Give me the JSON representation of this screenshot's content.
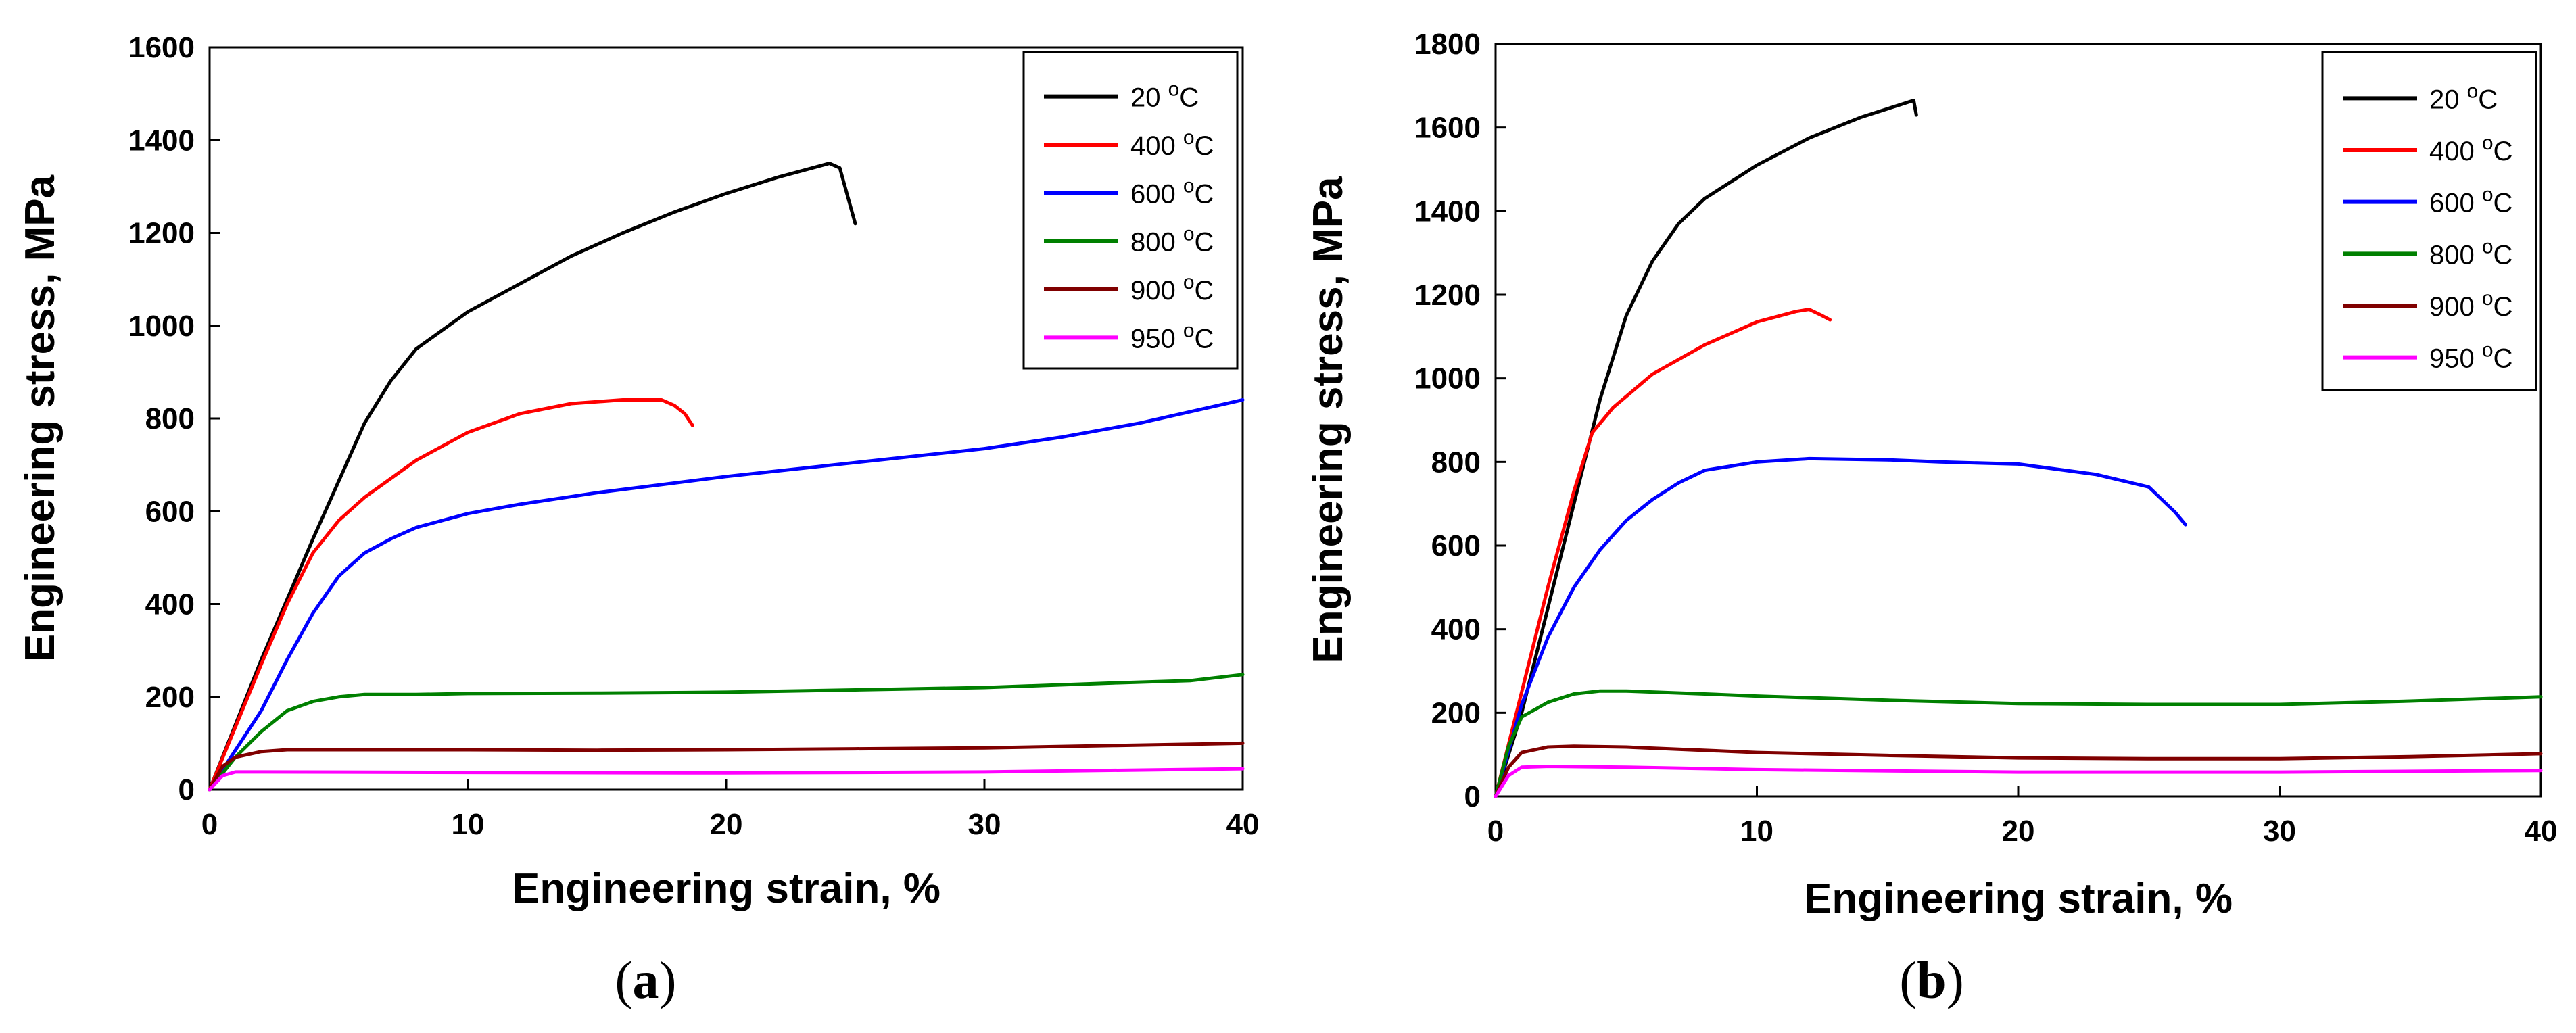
{
  "figure": {
    "panel_a_label": "a",
    "panel_b_label": "b"
  },
  "legend_entries": [
    "20 °C",
    "400 °C",
    "600 °C",
    "800 °C",
    "900 °C",
    "950 °C"
  ],
  "chart_data": [
    {
      "type": "line",
      "panel": "a",
      "title": "",
      "xlabel": "Engineering strain, %",
      "ylabel": "Engineering stress, MPa",
      "xlim": [
        0,
        40
      ],
      "ylim": [
        0,
        1600
      ],
      "xticks": [
        0,
        10,
        20,
        30,
        40
      ],
      "yticks": [
        0,
        200,
        400,
        600,
        800,
        1000,
        1200,
        1400,
        1600
      ],
      "grid": false,
      "legend_position": "top-right",
      "series": [
        {
          "name": "20 °C",
          "color": "#000000",
          "points": [
            [
              0,
              0
            ],
            [
              2,
              280
            ],
            [
              4,
              540
            ],
            [
              6,
              790
            ],
            [
              7,
              880
            ],
            [
              8,
              950
            ],
            [
              10,
              1030
            ],
            [
              12,
              1090
            ],
            [
              14,
              1150
            ],
            [
              16,
              1200
            ],
            [
              18,
              1245
            ],
            [
              20,
              1285
            ],
            [
              22,
              1320
            ],
            [
              23,
              1335
            ],
            [
              24,
              1350
            ],
            [
              24.4,
              1340
            ],
            [
              24.7,
              1280
            ],
            [
              25,
              1220
            ]
          ]
        },
        {
          "name": "400 °C",
          "color": "#ff0000",
          "points": [
            [
              0,
              0
            ],
            [
              2,
              270
            ],
            [
              3,
              400
            ],
            [
              4,
              510
            ],
            [
              5,
              580
            ],
            [
              6,
              630
            ],
            [
              8,
              710
            ],
            [
              10,
              770
            ],
            [
              12,
              810
            ],
            [
              14,
              832
            ],
            [
              16,
              840
            ],
            [
              17.5,
              840
            ],
            [
              18,
              828
            ],
            [
              18.4,
              810
            ],
            [
              18.7,
              785
            ]
          ]
        },
        {
          "name": "600 °C",
          "color": "#0000ff",
          "points": [
            [
              0,
              0
            ],
            [
              2,
              170
            ],
            [
              3,
              280
            ],
            [
              4,
              380
            ],
            [
              5,
              460
            ],
            [
              6,
              510
            ],
            [
              7,
              540
            ],
            [
              8,
              565
            ],
            [
              10,
              595
            ],
            [
              12,
              615
            ],
            [
              15,
              640
            ],
            [
              20,
              675
            ],
            [
              25,
              705
            ],
            [
              30,
              735
            ],
            [
              33,
              760
            ],
            [
              36,
              790
            ],
            [
              40,
              840
            ]
          ]
        },
        {
          "name": "800 °C",
          "color": "#008000",
          "points": [
            [
              0,
              0
            ],
            [
              1,
              70
            ],
            [
              2,
              125
            ],
            [
              3,
              170
            ],
            [
              4,
              190
            ],
            [
              5,
              200
            ],
            [
              6,
              205
            ],
            [
              8,
              205
            ],
            [
              10,
              207
            ],
            [
              15,
              208
            ],
            [
              20,
              210
            ],
            [
              25,
              215
            ],
            [
              30,
              220
            ],
            [
              35,
              230
            ],
            [
              38,
              235
            ],
            [
              40,
              248
            ]
          ]
        },
        {
          "name": "900 °C",
          "color": "#800000",
          "points": [
            [
              0,
              0
            ],
            [
              0.5,
              50
            ],
            [
              1,
              70
            ],
            [
              2,
              82
            ],
            [
              3,
              86
            ],
            [
              5,
              86
            ],
            [
              10,
              86
            ],
            [
              15,
              85
            ],
            [
              20,
              86
            ],
            [
              25,
              88
            ],
            [
              30,
              90
            ],
            [
              35,
              95
            ],
            [
              40,
              100
            ]
          ]
        },
        {
          "name": "950 °C",
          "color": "#ff00ff",
          "points": [
            [
              0,
              0
            ],
            [
              0.5,
              30
            ],
            [
              1,
              38
            ],
            [
              2,
              38
            ],
            [
              10,
              37
            ],
            [
              20,
              36
            ],
            [
              30,
              38
            ],
            [
              40,
              45
            ]
          ]
        }
      ]
    },
    {
      "type": "line",
      "panel": "b",
      "title": "",
      "xlabel": "Engineering strain, %",
      "ylabel": "Engineering stress, MPa",
      "xlim": [
        0,
        40
      ],
      "ylim": [
        0,
        1800
      ],
      "xticks": [
        0,
        10,
        20,
        30,
        40
      ],
      "yticks": [
        0,
        200,
        400,
        600,
        800,
        1000,
        1200,
        1400,
        1600,
        1800
      ],
      "grid": false,
      "legend_position": "top-right",
      "series": [
        {
          "name": "20 °C",
          "color": "#000000",
          "points": [
            [
              0,
              0
            ],
            [
              1,
              200
            ],
            [
              2,
              450
            ],
            [
              3,
              700
            ],
            [
              4,
              950
            ],
            [
              5,
              1150
            ],
            [
              6,
              1280
            ],
            [
              7,
              1370
            ],
            [
              8,
              1430
            ],
            [
              10,
              1510
            ],
            [
              12,
              1575
            ],
            [
              14,
              1625
            ],
            [
              15.5,
              1655
            ],
            [
              16,
              1665
            ],
            [
              16.1,
              1630
            ]
          ]
        },
        {
          "name": "400 °C",
          "color": "#ff0000",
          "points": [
            [
              0,
              0
            ],
            [
              1,
              250
            ],
            [
              2,
              500
            ],
            [
              3,
              730
            ],
            [
              3.7,
              870
            ],
            [
              4.5,
              930
            ],
            [
              6,
              1010
            ],
            [
              8,
              1080
            ],
            [
              10,
              1135
            ],
            [
              11.5,
              1160
            ],
            [
              12,
              1165
            ],
            [
              12.5,
              1150
            ],
            [
              12.8,
              1140
            ]
          ]
        },
        {
          "name": "600 °C",
          "color": "#0000ff",
          "points": [
            [
              0,
              0
            ],
            [
              1,
              220
            ],
            [
              2,
              380
            ],
            [
              3,
              500
            ],
            [
              4,
              590
            ],
            [
              5,
              660
            ],
            [
              6,
              710
            ],
            [
              7,
              750
            ],
            [
              8,
              780
            ],
            [
              10,
              800
            ],
            [
              12,
              808
            ],
            [
              15,
              805
            ],
            [
              17,
              800
            ],
            [
              20,
              795
            ],
            [
              23,
              770
            ],
            [
              25,
              740
            ],
            [
              25.5,
              710
            ],
            [
              26,
              680
            ],
            [
              26.4,
              650
            ]
          ]
        },
        {
          "name": "800 °C",
          "color": "#008000",
          "points": [
            [
              0,
              0
            ],
            [
              0.5,
              120
            ],
            [
              1,
              190
            ],
            [
              2,
              225
            ],
            [
              3,
              245
            ],
            [
              4,
              252
            ],
            [
              5,
              252
            ],
            [
              8,
              245
            ],
            [
              10,
              240
            ],
            [
              15,
              230
            ],
            [
              20,
              222
            ],
            [
              25,
              220
            ],
            [
              30,
              220
            ],
            [
              35,
              228
            ],
            [
              40,
              238
            ]
          ]
        },
        {
          "name": "900 °C",
          "color": "#800000",
          "points": [
            [
              0,
              0
            ],
            [
              0.5,
              70
            ],
            [
              1,
              105
            ],
            [
              2,
              118
            ],
            [
              3,
              120
            ],
            [
              5,
              118
            ],
            [
              10,
              105
            ],
            [
              15,
              98
            ],
            [
              20,
              92
            ],
            [
              25,
              90
            ],
            [
              30,
              90
            ],
            [
              35,
              95
            ],
            [
              40,
              102
            ]
          ]
        },
        {
          "name": "950 °C",
          "color": "#ff00ff",
          "points": [
            [
              0,
              0
            ],
            [
              0.5,
              50
            ],
            [
              1,
              70
            ],
            [
              2,
              72
            ],
            [
              5,
              70
            ],
            [
              10,
              64
            ],
            [
              20,
              58
            ],
            [
              30,
              58
            ],
            [
              40,
              62
            ]
          ]
        }
      ]
    }
  ]
}
